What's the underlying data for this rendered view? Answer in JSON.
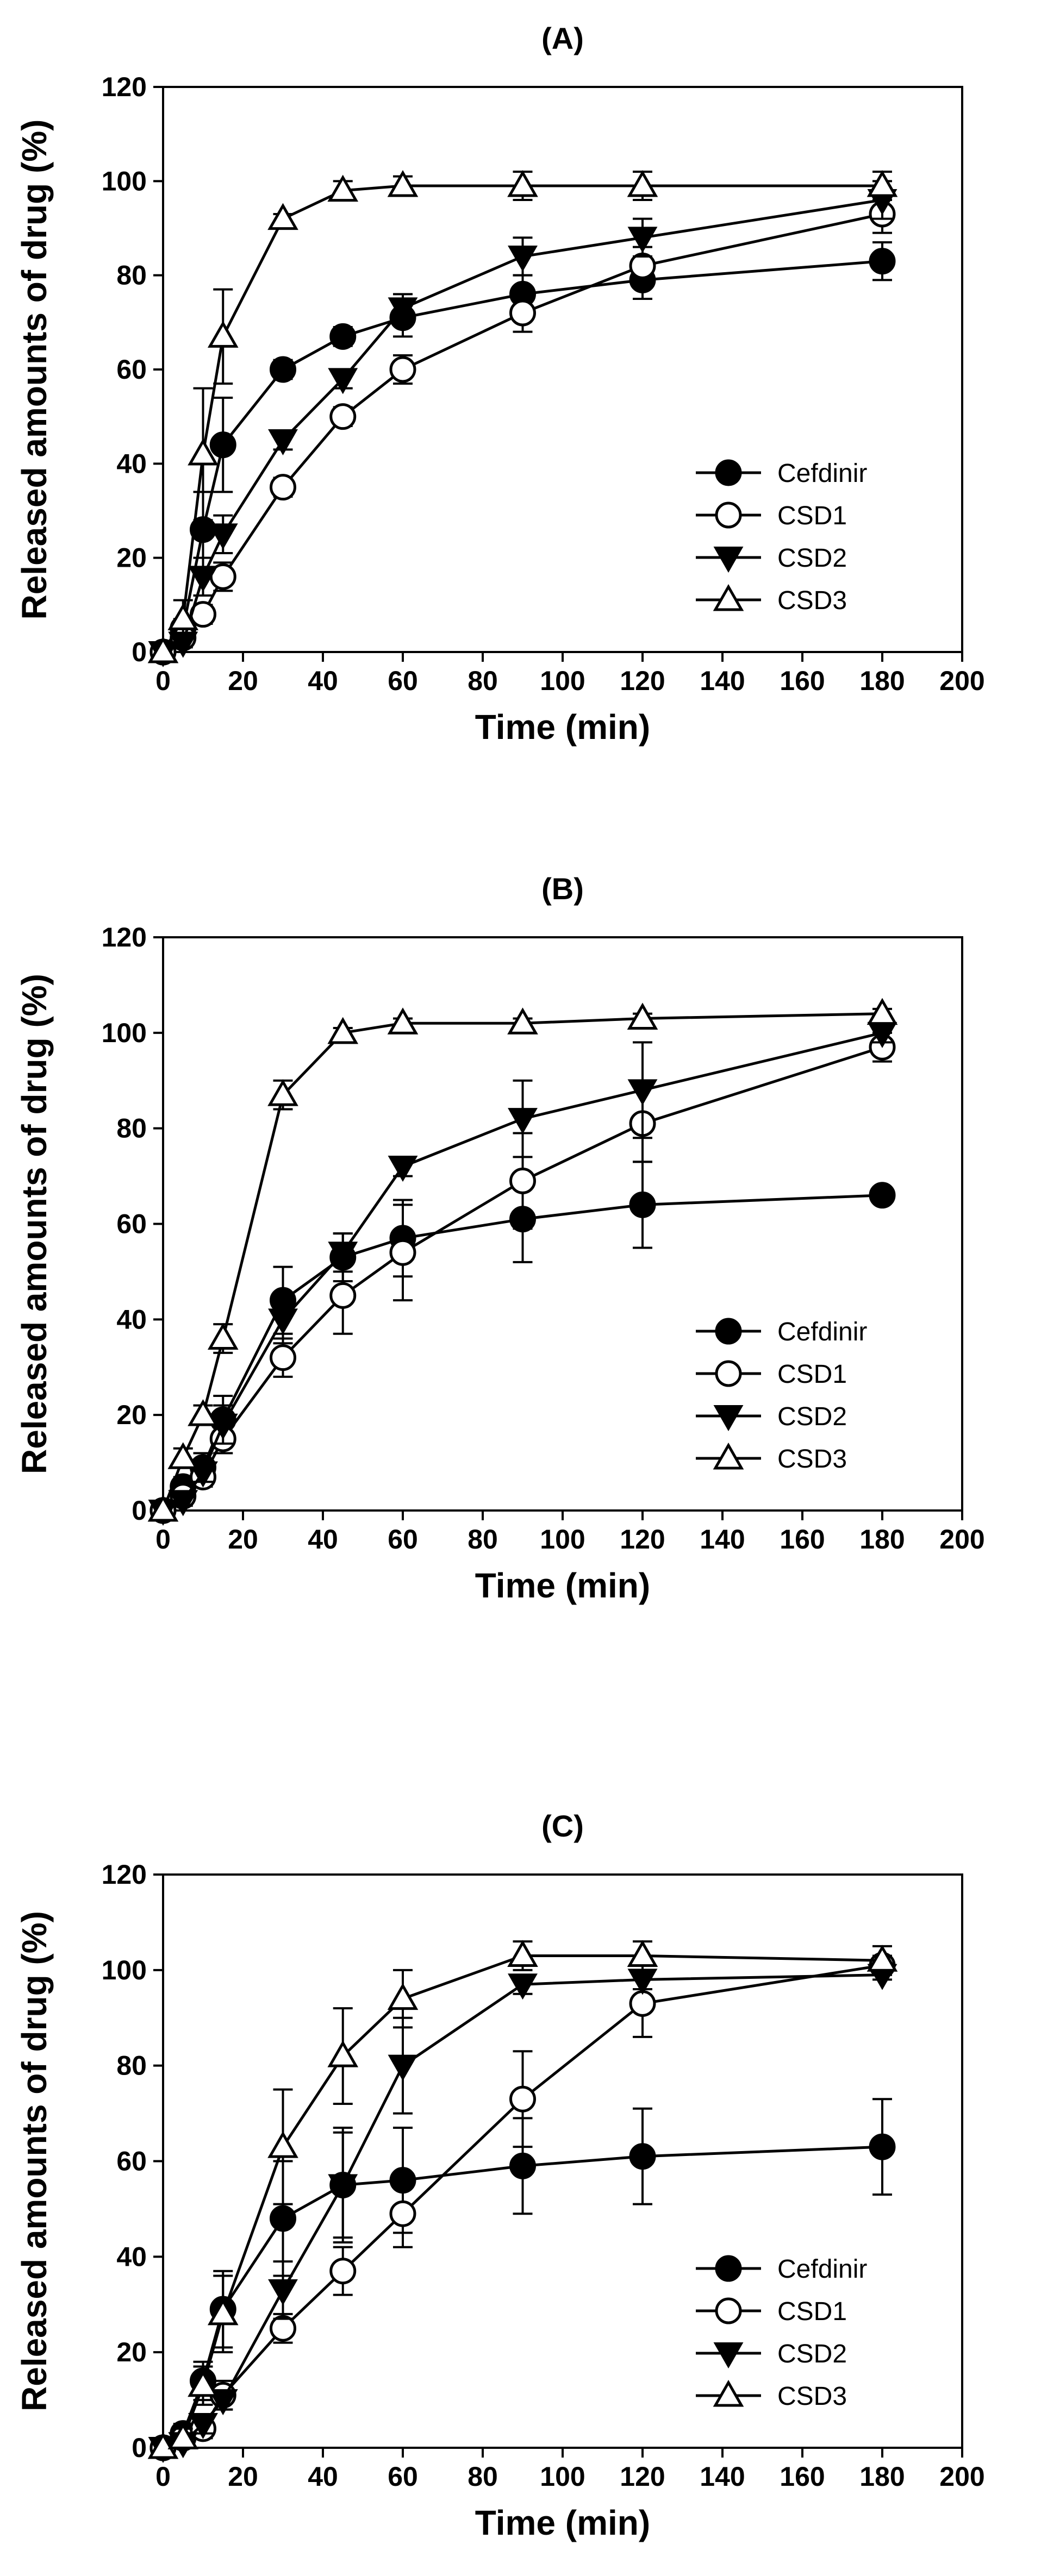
{
  "figure": {
    "xlabel": "Time (min)",
    "ylabel": "Released amounts of drug (%)",
    "xlim": [
      0,
      200
    ],
    "ylim": [
      0,
      120
    ],
    "xticks": [
      "0",
      "20",
      "40",
      "60",
      "80",
      "100",
      "120",
      "140",
      "160",
      "180",
      "200"
    ],
    "yticks": [
      "0",
      "20",
      "40",
      "60",
      "80",
      "100",
      "120"
    ]
  },
  "chart_data": [
    {
      "type": "line",
      "title": "(A)",
      "xlabel": "Time (min)",
      "ylabel": "Released amounts of drug (%)",
      "xlim": [
        0,
        200
      ],
      "ylim": [
        0,
        120
      ],
      "legend": "bottom-right",
      "x": [
        0,
        5,
        10,
        15,
        30,
        45,
        60,
        90,
        120,
        180
      ],
      "series": [
        {
          "name": "Cefdinir",
          "marker": "filled-circle",
          "values": [
            0,
            5,
            26,
            44,
            60,
            67,
            71,
            76,
            79,
            83
          ],
          "errors": [
            0,
            2,
            8,
            10,
            2,
            2,
            4,
            4,
            4,
            4
          ]
        },
        {
          "name": "CSD1",
          "marker": "open-circle",
          "values": [
            0,
            3,
            8,
            16,
            35,
            50,
            60,
            72,
            82,
            93
          ],
          "errors": [
            0,
            1,
            2,
            3,
            2,
            2,
            3,
            4,
            4,
            4
          ]
        },
        {
          "name": "CSD2",
          "marker": "filled-triangle-down",
          "values": [
            0,
            2,
            16,
            25,
            45,
            58,
            73,
            84,
            88,
            96
          ],
          "errors": [
            0,
            1,
            4,
            4,
            2,
            2,
            3,
            4,
            4,
            4
          ]
        },
        {
          "name": "CSD3",
          "marker": "open-triangle-up",
          "values": [
            0,
            7,
            42,
            67,
            92,
            98,
            99,
            99,
            99,
            99
          ],
          "errors": [
            0,
            4,
            14,
            10,
            1,
            2,
            2,
            3,
            3,
            3
          ]
        }
      ]
    },
    {
      "type": "line",
      "title": "(B)",
      "xlabel": "Time (min)",
      "ylabel": "Released amounts of drug (%)",
      "xlim": [
        0,
        200
      ],
      "ylim": [
        0,
        120
      ],
      "legend": "bottom-right",
      "x": [
        0,
        5,
        10,
        15,
        30,
        45,
        60,
        90,
        120,
        180
      ],
      "series": [
        {
          "name": "Cefdinir",
          "marker": "filled-circle",
          "values": [
            0,
            5,
            9,
            19,
            44,
            53,
            57,
            61,
            64,
            66
          ],
          "errors": [
            0,
            2,
            3,
            5,
            7,
            5,
            8,
            9,
            9,
            1
          ]
        },
        {
          "name": "CSD1",
          "marker": "open-circle",
          "values": [
            0,
            3,
            7,
            15,
            32,
            45,
            54,
            69,
            81,
            97
          ],
          "errors": [
            0,
            1,
            2,
            3,
            4,
            8,
            10,
            10,
            8,
            3
          ]
        },
        {
          "name": "CSD2",
          "marker": "filled-triangle-down",
          "values": [
            0,
            2,
            8,
            18,
            40,
            54,
            72,
            82,
            88,
            100
          ],
          "errors": [
            0,
            1,
            2,
            4,
            5,
            4,
            2,
            8,
            10,
            2
          ]
        },
        {
          "name": "CSD3",
          "marker": "open-triangle-up",
          "values": [
            0,
            11,
            20,
            36,
            87,
            100,
            102,
            102,
            103,
            104
          ],
          "errors": [
            0,
            2,
            2,
            3,
            3,
            1,
            1,
            1,
            1,
            1
          ]
        }
      ]
    },
    {
      "type": "line",
      "title": "(C)",
      "xlabel": "Time (min)",
      "ylabel": "Released amounts of drug (%)",
      "xlim": [
        0,
        200
      ],
      "ylim": [
        0,
        120
      ],
      "legend": "bottom-right",
      "x": [
        0,
        5,
        10,
        15,
        30,
        45,
        60,
        90,
        120,
        180
      ],
      "series": [
        {
          "name": "Cefdinir",
          "marker": "filled-circle",
          "values": [
            0,
            3,
            14,
            29,
            48,
            55,
            56,
            59,
            61,
            63
          ],
          "errors": [
            0,
            2,
            4,
            8,
            12,
            11,
            11,
            10,
            10,
            10
          ]
        },
        {
          "name": "CSD1",
          "marker": "open-circle",
          "values": [
            0,
            2,
            4,
            11,
            25,
            37,
            49,
            73,
            93,
            101
          ],
          "errors": [
            0,
            1,
            2,
            3,
            3,
            5,
            7,
            10,
            7,
            2
          ]
        },
        {
          "name": "CSD2",
          "marker": "filled-triangle-down",
          "values": [
            0,
            1,
            5,
            10,
            33,
            55,
            80,
            97,
            98,
            99
          ],
          "errors": [
            0,
            1,
            2,
            2,
            6,
            12,
            10,
            2,
            2,
            1
          ]
        },
        {
          "name": "CSD3",
          "marker": "open-triangle-up",
          "values": [
            0,
            2,
            13,
            28,
            63,
            82,
            94,
            103,
            103,
            102
          ],
          "errors": [
            0,
            2,
            4,
            8,
            12,
            10,
            6,
            3,
            3,
            3
          ]
        }
      ]
    }
  ]
}
